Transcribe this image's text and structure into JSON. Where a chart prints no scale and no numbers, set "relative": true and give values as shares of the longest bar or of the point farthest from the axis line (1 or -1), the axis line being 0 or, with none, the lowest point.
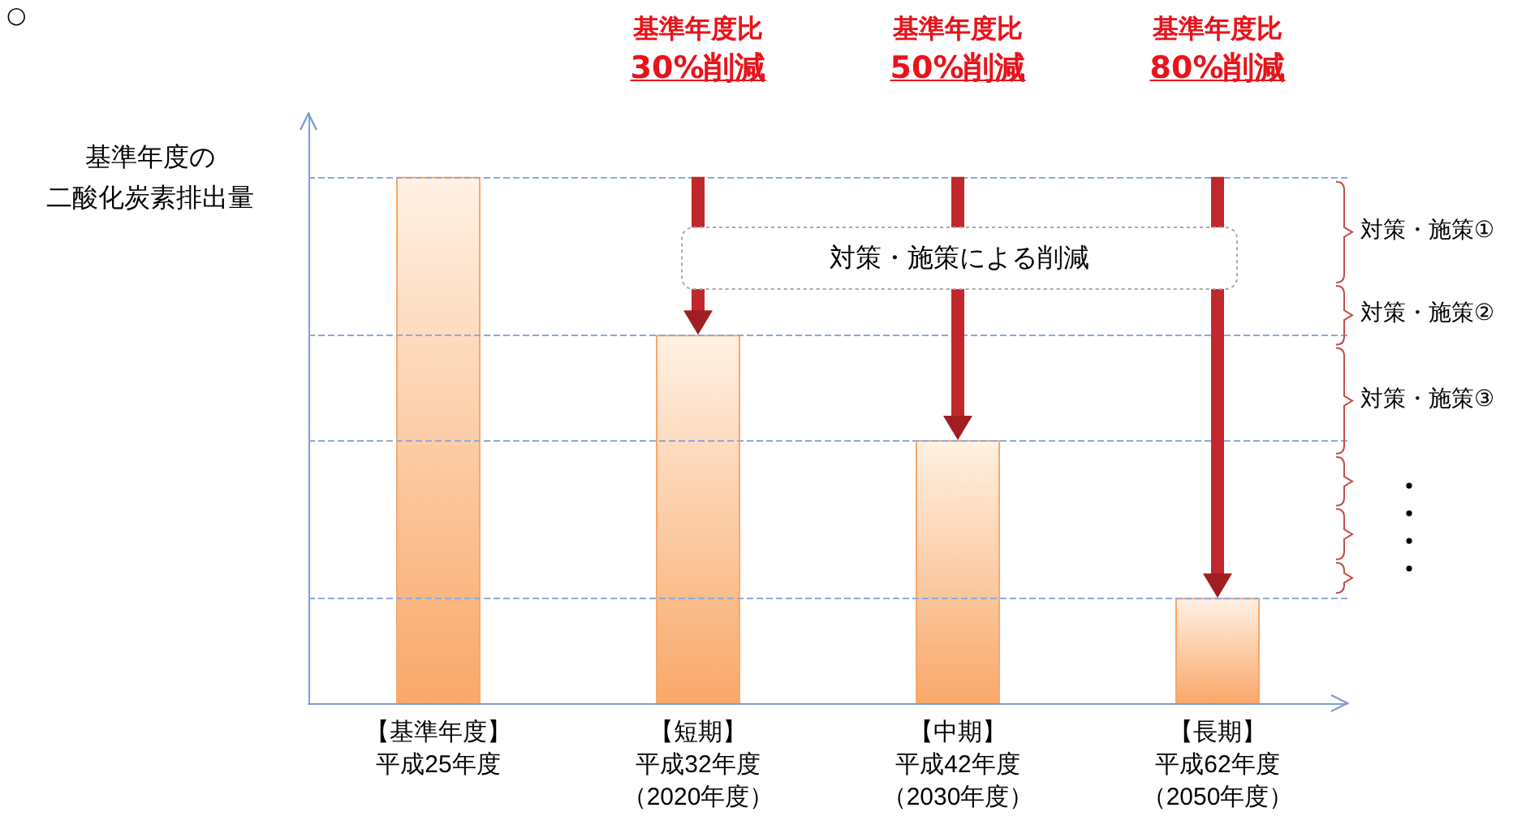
{
  "chart_data": {
    "type": "bar",
    "relative": true,
    "ylabel": "基準年度の二酸化炭素排出量",
    "categories": [
      "【基準年度】平成25年度",
      "【短期】平成32年度（2020年度）",
      "【中期】平成42年度（2030年度）",
      "【長期】平成62年度（2050年度）"
    ],
    "values": [
      1,
      0.7,
      0.5,
      0.2
    ],
    "color": "#f9a869",
    "grid": false,
    "ref_lines": [
      {
        "axis": "y",
        "value": 1,
        "line_style": "dashed",
        "color": "#8eaadb"
      },
      {
        "axis": "y",
        "value": 0.7,
        "line_style": "dashed",
        "color": "#8eaadb"
      },
      {
        "axis": "y",
        "value": 0.5,
        "line_style": "dashed",
        "color": "#8eaadb"
      },
      {
        "axis": "y",
        "value": 0.2,
        "line_style": "dashed",
        "color": "#8eaadb"
      }
    ],
    "annotations": [
      "○",
      "基準年度比30%削減",
      "基準年度比50%削減",
      "基準年度比80%削減",
      "対策・施策による削減",
      "対策・施策①",
      "対策・施策②",
      "対策・施策③"
    ]
  }
}
